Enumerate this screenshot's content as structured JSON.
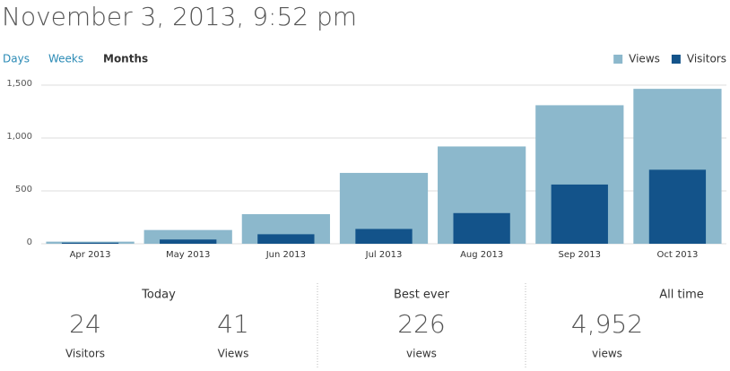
{
  "header": {
    "title": "November 3, 2013, 9:52 pm"
  },
  "tabs": {
    "items": [
      "Days",
      "Weeks",
      "Months"
    ],
    "active": 2
  },
  "chart_data": {
    "type": "bar",
    "categories": [
      "Apr 2013",
      "May 2013",
      "Jun 2013",
      "Jul 2013",
      "Aug 2013",
      "Sep 2013",
      "Oct 2013"
    ],
    "series": [
      {
        "name": "Views",
        "color": "#8cb8cc",
        "values": [
          20,
          130,
          280,
          670,
          920,
          1310,
          1465
        ]
      },
      {
        "name": "Visitors",
        "color": "#13538a",
        "values": [
          10,
          40,
          90,
          140,
          290,
          560,
          700
        ]
      }
    ],
    "ylim": [
      0,
      1500
    ],
    "yticks": [
      0,
      500,
      {
        "value": 1000,
        "label": "1,000"
      },
      {
        "value": 1500,
        "label": "1,500"
      }
    ],
    "grid": true,
    "legend": "top-right",
    "overlap": true
  },
  "summary": [
    {
      "title": "Today",
      "stats": [
        {
          "value": "24",
          "label": "Visitors"
        },
        {
          "value": "41",
          "label": "Views"
        }
      ]
    },
    {
      "title": "Best ever",
      "stats": [
        {
          "value": "226",
          "label": "views"
        }
      ]
    },
    {
      "title": "All time",
      "stats": [
        {
          "value": "4,952",
          "label": "views"
        }
      ]
    }
  ]
}
